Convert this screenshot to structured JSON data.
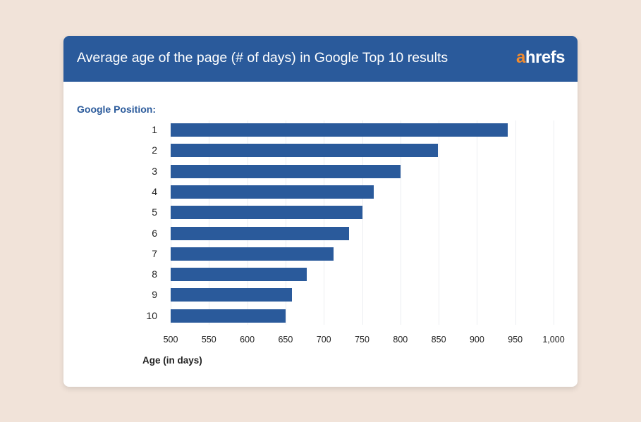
{
  "header": {
    "title": "Average age of the page (# of days) in Google Top 10 results",
    "logo_a": "a",
    "logo_rest": "hrefs"
  },
  "colors": {
    "bar": "#2a5a9b",
    "header": "#2a5a9b",
    "logo_accent": "#f28b2d",
    "background": "#f1e3d9"
  },
  "chart_data": {
    "type": "bar",
    "orientation": "horizontal",
    "title": "Average age of the page (# of days) in Google Top 10 results",
    "ylabel": "Google Position:",
    "xlabel": "Age (in days)",
    "categories": [
      "1",
      "2",
      "3",
      "4",
      "5",
      "6",
      "7",
      "8",
      "9",
      "10"
    ],
    "values": [
      940,
      849,
      800,
      765,
      750,
      733,
      713,
      678,
      658,
      650
    ],
    "xlim": [
      500,
      1000
    ],
    "xticks": [
      "500",
      "550",
      "600",
      "650",
      "700",
      "750",
      "800",
      "850",
      "900",
      "950",
      "1,000"
    ],
    "grid": true,
    "legend": null
  }
}
